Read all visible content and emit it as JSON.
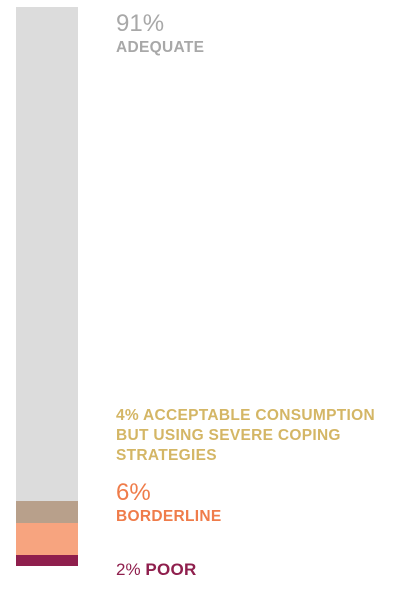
{
  "chart_data": {
    "type": "bar",
    "orientation": "vertical-stacked",
    "series": [
      {
        "label": "ADEQUATE",
        "percent_label": "91%",
        "value": 91,
        "color": "#dcdcdc"
      },
      {
        "label": "ACCEPTABLE CONSUMPTION BUT USING SEVERE COPING STRATEGIES",
        "percent_label": "4%",
        "value": 4,
        "color": "#b8a08b"
      },
      {
        "label": "BORDERLINE",
        "percent_label": "6%",
        "value": 6,
        "color": "#f7a47f"
      },
      {
        "label": "POOR",
        "percent_label": "2%",
        "value": 2,
        "color": "#8f1f4d"
      }
    ]
  }
}
